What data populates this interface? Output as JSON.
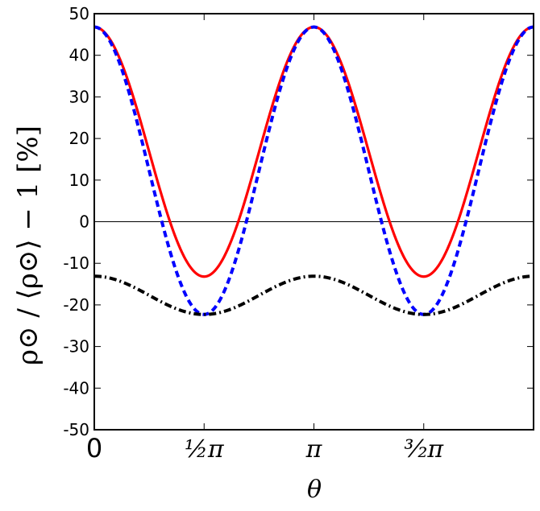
{
  "chart_data": {
    "type": "line",
    "xlabel": "θ",
    "ylabel": "ρ⊙ / ⟨ρ⊙⟩ − 1  [%]",
    "xlim": [
      0,
      6.2832
    ],
    "ylim": [
      -50,
      50
    ],
    "grid": false,
    "y_ticks": [
      "-50",
      "-40",
      "-30",
      "-20",
      "-10",
      "0",
      "10",
      "20",
      "30",
      "40",
      "50"
    ],
    "x_ticks": [
      {
        "value": 0,
        "label": "0"
      },
      {
        "value": 1.5708,
        "label": "½π"
      },
      {
        "value": 3.1416,
        "label": "π"
      },
      {
        "value": 4.7124,
        "label": "³⁄₂π"
      }
    ],
    "reference_line": {
      "y": 0,
      "color": "#000000"
    },
    "series": [
      {
        "color": "#ff0000",
        "style": "solid",
        "x": [
          0,
          0.3927,
          0.7854,
          1.1781,
          1.5708,
          1.9635,
          2.3562,
          2.7489,
          3.1416,
          3.5343,
          3.927,
          4.3197,
          4.7124,
          5.1051,
          5.4978,
          5.8905,
          6.2832
        ],
        "values": [
          46.8,
          38.0,
          16.8,
          -4.4,
          -13.2,
          -4.4,
          16.8,
          38.0,
          46.8,
          38.0,
          16.8,
          -4.4,
          -13.2,
          -4.4,
          16.8,
          38.0,
          46.8
        ]
      },
      {
        "color": "#0000ff",
        "style": "dashed",
        "x": [
          0,
          0.3927,
          0.7854,
          1.1781,
          1.5708,
          1.9635,
          2.3562,
          2.7489,
          3.1416,
          3.5343,
          3.927,
          4.3197,
          4.7124,
          5.1051,
          5.4978,
          5.8905,
          6.2832
        ],
        "values": [
          46.8,
          36.3,
          12.1,
          -12.1,
          -22.3,
          -12.1,
          12.1,
          36.3,
          46.8,
          36.3,
          12.1,
          -12.1,
          -22.3,
          -12.1,
          12.1,
          36.3,
          46.8
        ]
      },
      {
        "color": "#000000",
        "style": "dashdot",
        "x": [
          0,
          0.3927,
          0.7854,
          1.1781,
          1.5708,
          1.9635,
          2.3562,
          2.7489,
          3.1416,
          3.5343,
          3.927,
          4.3197,
          4.7124,
          5.1051,
          5.4978,
          5.8905,
          6.2832
        ],
        "values": [
          -13.1,
          -14.4,
          -17.7,
          -21.0,
          -22.3,
          -21.0,
          -17.7,
          -14.4,
          -13.1,
          -14.4,
          -17.7,
          -21.0,
          -22.3,
          -21.0,
          -17.7,
          -14.4,
          -13.1
        ]
      }
    ]
  }
}
